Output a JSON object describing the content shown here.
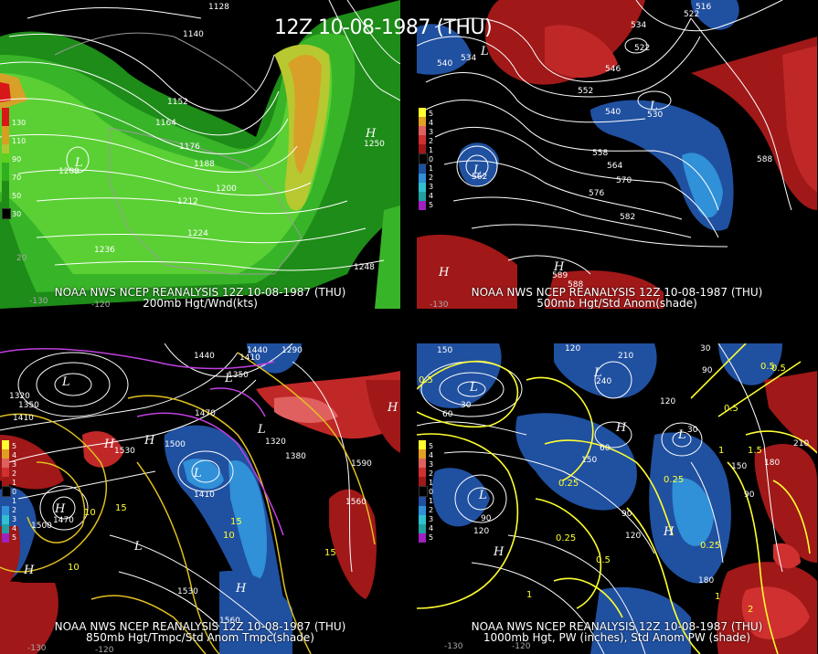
{
  "title": "12Z 10-08-1987 (THU)",
  "panels": [
    {
      "id": "p200",
      "caption_line1": "NOAA NWS NCEP REANALYSIS 12Z 10-08-1987 (THU)",
      "caption_line2": "200mb Hgt/Wnd(kts)",
      "legend": [
        {
          "label": "130",
          "color": "#d81818"
        },
        {
          "label": "110",
          "color": "#d8a020"
        },
        {
          "label": "90",
          "color": "#b0c830"
        },
        {
          "label": "70",
          "color": "#60d020"
        },
        {
          "label": "50",
          "color": "#30b020"
        },
        {
          "label": "30",
          "color": "#208c18"
        }
      ],
      "contour_labels": [
        "1128",
        "1140",
        "1152",
        "1164",
        "1176",
        "1188",
        "1200",
        "1212",
        "1224",
        "1236",
        "1248",
        "1250",
        "1209"
      ],
      "lon_labels": [
        "-130",
        "-120",
        "20"
      ]
    },
    {
      "id": "p500",
      "caption_line1": "NOAA NWS NCEP REANALYSIS 12Z 10-08-1987 (THU)",
      "caption_line2": "500mb Hgt/Std Anom(shade)",
      "legend": [
        {
          "label": "5",
          "color": "#ffff30"
        },
        {
          "label": "4",
          "color": "#e0a020"
        },
        {
          "label": "3",
          "color": "#e06060"
        },
        {
          "label": "2",
          "color": "#d03030"
        },
        {
          "label": "1",
          "color": "#a01818"
        },
        {
          "label": "0",
          "color": "#000000"
        },
        {
          "label": "1",
          "color": "#2050a0"
        },
        {
          "label": "2",
          "color": "#3090d8"
        },
        {
          "label": "3",
          "color": "#30c0d0"
        },
        {
          "label": "4",
          "color": "#20a0a0"
        },
        {
          "label": "5",
          "color": "#a020c0"
        }
      ],
      "contour_labels": [
        "516",
        "522",
        "534",
        "534",
        "540",
        "540",
        "546",
        "552",
        "558",
        "564",
        "570",
        "576",
        "582",
        "588",
        "588",
        "530",
        "562",
        "589",
        "522"
      ],
      "lon_labels": [
        "-130"
      ]
    },
    {
      "id": "p850",
      "caption_line1": "NOAA NWS NCEP REANALYSIS 12Z 10-08-1987 (THU)",
      "caption_line2": "850mb Hgt/Tmpc/Std Anom Tmpc(shade)",
      "legend": [
        {
          "label": "5",
          "color": "#ffff30"
        },
        {
          "label": "4",
          "color": "#e0a020"
        },
        {
          "label": "3",
          "color": "#e06060"
        },
        {
          "label": "2",
          "color": "#d03030"
        },
        {
          "label": "1",
          "color": "#a01818"
        },
        {
          "label": "0",
          "color": "#000000"
        },
        {
          "label": "1",
          "color": "#2050a0"
        },
        {
          "label": "2",
          "color": "#3090d8"
        },
        {
          "label": "3",
          "color": "#30c0d0"
        },
        {
          "label": "4",
          "color": "#20a0a0"
        },
        {
          "label": "5",
          "color": "#a020c0"
        }
      ],
      "contour_labels": [
        "1440",
        "1440",
        "1410",
        "1350",
        "1320",
        "1290",
        "1380",
        "1470",
        "1500",
        "1530",
        "1410",
        "1590",
        "1560",
        "1530",
        "1560",
        "1500",
        "1470",
        "1320",
        "1350",
        "1410"
      ],
      "temp_labels": [
        "10",
        "15",
        "10",
        "15",
        "10",
        "15"
      ],
      "lon_labels": [
        "-130",
        "-120"
      ]
    },
    {
      "id": "p1000",
      "caption_line1": "NOAA NWS NCEP REANALYSIS 12Z 10-08-1987 (THU)",
      "caption_line2": "1000mb Hgt, PW (inches), Std Anom PW (shade)",
      "legend": [
        {
          "label": "5",
          "color": "#ffff30"
        },
        {
          "label": "4",
          "color": "#e0a020"
        },
        {
          "label": "3",
          "color": "#e06060"
        },
        {
          "label": "2",
          "color": "#d03030"
        },
        {
          "label": "1",
          "color": "#a01818"
        },
        {
          "label": "0",
          "color": "#000000"
        },
        {
          "label": "1",
          "color": "#2050a0"
        },
        {
          "label": "2",
          "color": "#3090d8"
        },
        {
          "label": "3",
          "color": "#30c0d0"
        },
        {
          "label": "4",
          "color": "#20a0a0"
        },
        {
          "label": "5",
          "color": "#a020c0"
        }
      ],
      "contour_labels": [
        "150",
        "120",
        "210",
        "240",
        "120",
        "90",
        "60",
        "30",
        "30",
        "150",
        "180",
        "210",
        "90",
        "120",
        "150",
        "180",
        "90",
        "120",
        "60",
        "90",
        "30"
      ],
      "pw_labels": [
        "0.5",
        "0.5",
        "0.5",
        "0.25",
        "0.25",
        "0.25",
        "0.5",
        "0.5",
        "0.25",
        "1",
        "1",
        "1.5",
        "1",
        "2"
      ],
      "lon_labels": [
        "-120",
        "-130"
      ]
    }
  ]
}
